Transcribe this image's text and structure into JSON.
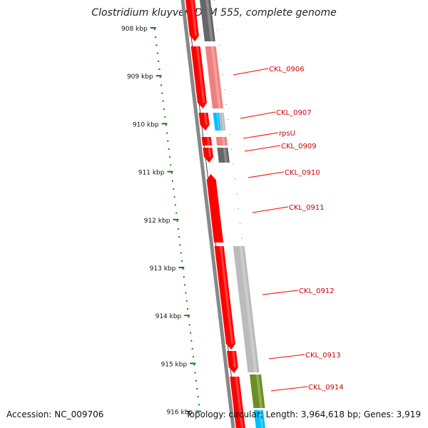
{
  "header": {
    "title": "Clostridium kluyveri DSM 555, complete genome"
  },
  "footer": {
    "accession": "Accession: NC_009706",
    "summary": "Topology: circular; Length: 3,964,618 bp; Genes: 3,919"
  },
  "scale": {
    "ticks": [
      "908 kbp",
      "909 kbp",
      "910 kbp",
      "911 kbp",
      "912 kbp",
      "913 kbp",
      "914 kbp",
      "915 kbp",
      "916 kbp"
    ]
  },
  "genes": [
    {
      "label": "CKL_0906"
    },
    {
      "label": "CKL_0907"
    },
    {
      "label": "rpsU"
    },
    {
      "label": "CKL_0909"
    },
    {
      "label": "CKL_0910"
    },
    {
      "label": "CKL_0911"
    },
    {
      "label": "CKL_0912"
    },
    {
      "label": "CKL_0913"
    },
    {
      "label": "CKL_0914"
    }
  ],
  "colors": {
    "cds": "#ff0000",
    "label": "#cc0000",
    "tick": "#1a7a1a",
    "backbone": "#888888",
    "salmon": "#f08080",
    "dark_gray": "#666666",
    "light_gray": "#bbbbbb",
    "cyan": "#00bfff",
    "olive": "#6b8e23"
  }
}
